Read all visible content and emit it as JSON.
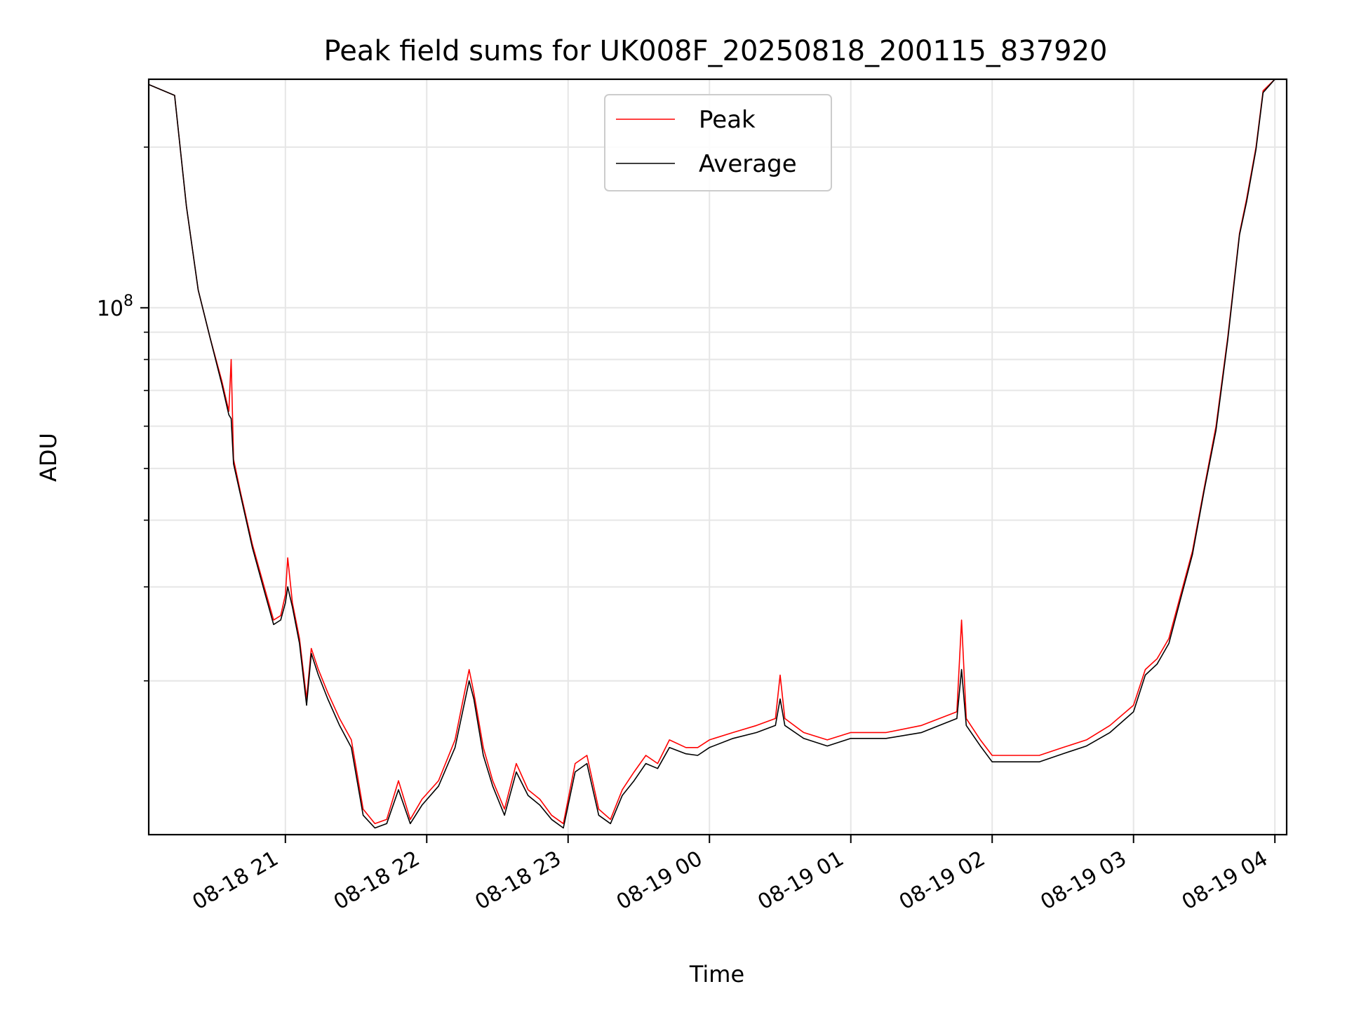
{
  "chart_data": {
    "type": "line",
    "title": "Peak field sums for UK008F_20250818_200115_837920",
    "xlabel": "Time",
    "ylabel": "ADU",
    "yscale": "log",
    "grid": true,
    "legend_position": "top-center",
    "xlim": [
      "2025-08-18 20:02",
      "2025-08-19 04:05"
    ],
    "ylim": [
      10300000,
      268000000
    ],
    "x_ticks": [
      {
        "value": "2025-08-18 21:00",
        "label": "08-18 21"
      },
      {
        "value": "2025-08-18 22:00",
        "label": "08-18 22"
      },
      {
        "value": "2025-08-18 23:00",
        "label": "08-18 23"
      },
      {
        "value": "2025-08-19 00:00",
        "label": "08-19 00"
      },
      {
        "value": "2025-08-19 01:00",
        "label": "08-19 01"
      },
      {
        "value": "2025-08-19 02:00",
        "label": "08-19 02"
      },
      {
        "value": "2025-08-19 03:00",
        "label": "08-19 03"
      },
      {
        "value": "2025-08-19 04:00",
        "label": "08-19 04"
      }
    ],
    "y_major_ticks": [
      {
        "value": 100000000,
        "base": "10",
        "exponent": "8"
      }
    ],
    "y_minor_ticks": [
      20000000,
      30000000,
      40000000,
      50000000,
      60000000,
      70000000,
      80000000,
      90000000,
      200000000
    ],
    "series": [
      {
        "name": "Peak",
        "color": "#ff0000",
        "x": [
          "2025-08-18 20:02",
          "2025-08-18 20:13",
          "2025-08-18 20:18",
          "2025-08-18 20:23",
          "2025-08-18 20:28",
          "2025-08-18 20:33",
          "2025-08-18 20:36",
          "2025-08-18 20:37",
          "2025-08-18 20:38",
          "2025-08-18 20:41",
          "2025-08-18 20:46",
          "2025-08-18 20:51",
          "2025-08-18 20:55",
          "2025-08-18 20:58",
          "2025-08-18 21:00",
          "2025-08-18 21:01",
          "2025-08-18 21:03",
          "2025-08-18 21:06",
          "2025-08-18 21:09",
          "2025-08-18 21:11",
          "2025-08-18 21:14",
          "2025-08-18 21:18",
          "2025-08-18 21:23",
          "2025-08-18 21:28",
          "2025-08-18 21:33",
          "2025-08-18 21:38",
          "2025-08-18 21:43",
          "2025-08-18 21:48",
          "2025-08-18 21:53",
          "2025-08-18 21:58",
          "2025-08-18 22:05",
          "2025-08-18 22:12",
          "2025-08-18 22:18",
          "2025-08-18 22:20",
          "2025-08-18 22:24",
          "2025-08-18 22:28",
          "2025-08-18 22:33",
          "2025-08-18 22:38",
          "2025-08-18 22:43",
          "2025-08-18 22:48",
          "2025-08-18 22:53",
          "2025-08-18 22:58",
          "2025-08-18 23:03",
          "2025-08-18 23:08",
          "2025-08-18 23:13",
          "2025-08-18 23:18",
          "2025-08-18 23:23",
          "2025-08-18 23:28",
          "2025-08-18 23:33",
          "2025-08-18 23:38",
          "2025-08-18 23:43",
          "2025-08-18 23:50",
          "2025-08-18 23:55",
          "2025-08-19 00:00",
          "2025-08-19 00:10",
          "2025-08-19 00:20",
          "2025-08-19 00:28",
          "2025-08-19 00:30",
          "2025-08-19 00:32",
          "2025-08-19 00:40",
          "2025-08-19 00:50",
          "2025-08-19 01:00",
          "2025-08-19 01:15",
          "2025-08-19 01:30",
          "2025-08-19 01:45",
          "2025-08-19 01:47",
          "2025-08-19 01:49",
          "2025-08-19 01:55",
          "2025-08-19 02:00",
          "2025-08-19 02:10",
          "2025-08-19 02:20",
          "2025-08-19 02:30",
          "2025-08-19 02:40",
          "2025-08-19 02:50",
          "2025-08-19 03:00",
          "2025-08-19 03:05",
          "2025-08-19 03:10",
          "2025-08-19 03:15",
          "2025-08-19 03:20",
          "2025-08-19 03:25",
          "2025-08-19 03:30",
          "2025-08-19 03:35",
          "2025-08-19 03:40",
          "2025-08-19 03:45",
          "2025-08-19 03:48",
          "2025-08-19 03:52",
          "2025-08-19 03:55",
          "2025-08-19 04:00",
          "2025-08-19 04:05"
        ],
        "values": [
          262000000,
          250000000,
          155000000,
          108000000,
          88000000,
          73000000,
          64000000,
          80000000,
          52000000,
          45000000,
          36000000,
          30000000,
          26000000,
          26500000,
          29000000,
          34000000,
          28000000,
          24000000,
          18500000,
          23000000,
          21000000,
          19000000,
          17000000,
          15500000,
          11500000,
          10800000,
          11000000,
          13000000,
          11000000,
          12000000,
          13000000,
          15500000,
          21000000,
          19000000,
          15000000,
          13000000,
          11500000,
          14000000,
          12500000,
          12000000,
          11200000,
          10800000,
          14000000,
          14500000,
          11500000,
          11000000,
          12500000,
          13500000,
          14500000,
          14000000,
          15500000,
          15000000,
          15000000,
          15500000,
          16000000,
          16500000,
          17000000,
          20500000,
          17000000,
          16000000,
          15500000,
          16000000,
          16000000,
          16500000,
          17500000,
          26000000,
          17000000,
          15500000,
          14500000,
          14500000,
          14500000,
          15000000,
          15500000,
          16500000,
          18000000,
          21000000,
          22000000,
          24000000,
          29000000,
          35000000,
          46000000,
          60000000,
          88000000,
          138000000,
          160000000,
          200000000,
          255000000,
          268000000,
          268000000
        ]
      },
      {
        "name": "Average",
        "color": "#000000",
        "x": [
          "2025-08-18 20:02",
          "2025-08-18 20:13",
          "2025-08-18 20:18",
          "2025-08-18 20:23",
          "2025-08-18 20:28",
          "2025-08-18 20:33",
          "2025-08-18 20:36",
          "2025-08-18 20:37",
          "2025-08-18 20:38",
          "2025-08-18 20:41",
          "2025-08-18 20:46",
          "2025-08-18 20:51",
          "2025-08-18 20:55",
          "2025-08-18 20:58",
          "2025-08-18 21:00",
          "2025-08-18 21:01",
          "2025-08-18 21:03",
          "2025-08-18 21:06",
          "2025-08-18 21:09",
          "2025-08-18 21:11",
          "2025-08-18 21:14",
          "2025-08-18 21:18",
          "2025-08-18 21:23",
          "2025-08-18 21:28",
          "2025-08-18 21:33",
          "2025-08-18 21:38",
          "2025-08-18 21:43",
          "2025-08-18 21:48",
          "2025-08-18 21:53",
          "2025-08-18 21:58",
          "2025-08-18 22:05",
          "2025-08-18 22:12",
          "2025-08-18 22:18",
          "2025-08-18 22:20",
          "2025-08-18 22:24",
          "2025-08-18 22:28",
          "2025-08-18 22:33",
          "2025-08-18 22:38",
          "2025-08-18 22:43",
          "2025-08-18 22:48",
          "2025-08-18 22:53",
          "2025-08-18 22:58",
          "2025-08-18 23:03",
          "2025-08-18 23:08",
          "2025-08-18 23:13",
          "2025-08-18 23:18",
          "2025-08-18 23:23",
          "2025-08-18 23:28",
          "2025-08-18 23:33",
          "2025-08-18 23:38",
          "2025-08-18 23:43",
          "2025-08-18 23:50",
          "2025-08-18 23:55",
          "2025-08-19 00:00",
          "2025-08-19 00:10",
          "2025-08-19 00:20",
          "2025-08-19 00:28",
          "2025-08-19 00:30",
          "2025-08-19 00:32",
          "2025-08-19 00:40",
          "2025-08-19 00:50",
          "2025-08-19 01:00",
          "2025-08-19 01:15",
          "2025-08-19 01:30",
          "2025-08-19 01:45",
          "2025-08-19 01:47",
          "2025-08-19 01:49",
          "2025-08-19 01:55",
          "2025-08-19 02:00",
          "2025-08-19 02:10",
          "2025-08-19 02:20",
          "2025-08-19 02:30",
          "2025-08-19 02:40",
          "2025-08-19 02:50",
          "2025-08-19 03:00",
          "2025-08-19 03:05",
          "2025-08-19 03:10",
          "2025-08-19 03:15",
          "2025-08-19 03:20",
          "2025-08-19 03:25",
          "2025-08-19 03:30",
          "2025-08-19 03:35",
          "2025-08-19 03:40",
          "2025-08-19 03:45",
          "2025-08-19 03:48",
          "2025-08-19 03:52",
          "2025-08-19 03:55",
          "2025-08-19 04:00",
          "2025-08-19 04:05"
        ],
        "values": [
          262000000,
          250000000,
          155000000,
          108000000,
          88000000,
          72000000,
          63000000,
          62000000,
          51000000,
          44500000,
          35500000,
          29500000,
          25500000,
          26000000,
          28000000,
          30000000,
          27500000,
          23500000,
          18000000,
          22500000,
          20500000,
          18500000,
          16500000,
          15000000,
          11200000,
          10600000,
          10800000,
          12500000,
          10800000,
          11700000,
          12700000,
          15000000,
          20000000,
          18500000,
          14500000,
          12700000,
          11200000,
          13500000,
          12200000,
          11700000,
          11000000,
          10600000,
          13500000,
          14000000,
          11200000,
          10800000,
          12200000,
          13000000,
          14000000,
          13700000,
          15000000,
          14600000,
          14500000,
          15000000,
          15600000,
          16000000,
          16500000,
          18500000,
          16500000,
          15600000,
          15100000,
          15600000,
          15600000,
          16000000,
          17000000,
          21000000,
          16500000,
          15100000,
          14100000,
          14100000,
          14100000,
          14600000,
          15100000,
          16000000,
          17500000,
          20500000,
          21500000,
          23500000,
          28500000,
          34500000,
          45500000,
          59000000,
          87000000,
          137000000,
          158000000,
          198000000,
          253000000,
          268000000,
          268000000
        ]
      }
    ]
  }
}
